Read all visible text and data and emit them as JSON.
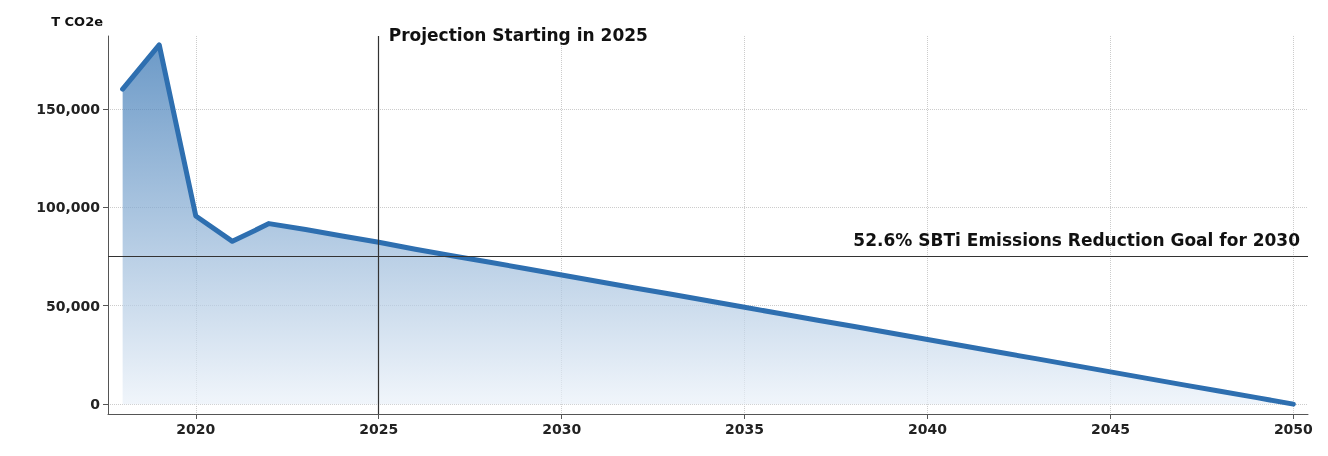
{
  "chart_data": {
    "type": "area",
    "ylabel": "T CO2e",
    "x": [
      2018,
      2019,
      2020,
      2021,
      2022,
      2023,
      2024,
      2025,
      2026,
      2027,
      2028,
      2029,
      2030,
      2031,
      2032,
      2033,
      2034,
      2035,
      2036,
      2037,
      2038,
      2039,
      2040,
      2041,
      2042,
      2043,
      2044,
      2045,
      2046,
      2047,
      2048,
      2049,
      2050
    ],
    "series": [
      {
        "color": "#2e6fb0",
        "values": [
          160000,
          182500,
          95600,
          82700,
          91700,
          88700,
          85400,
          82200,
          78700,
          75400,
          72200,
          68900,
          65600,
          62300,
          59000,
          55800,
          52500,
          49200,
          45900,
          42600,
          39400,
          36100,
          32800,
          29500,
          26200,
          23000,
          19700,
          16400,
          13100,
          9800,
          6600,
          3300,
          0
        ]
      }
    ],
    "xlim": [
      2017.6,
      2050.4
    ],
    "xticks": [
      {
        "value": 2020,
        "label": "2020"
      },
      {
        "value": 2025,
        "label": "2025"
      },
      {
        "value": 2030,
        "label": "2030"
      },
      {
        "value": 2035,
        "label": "2035"
      },
      {
        "value": 2040,
        "label": "2040"
      },
      {
        "value": 2045,
        "label": "2045"
      },
      {
        "value": 2050,
        "label": "2050"
      }
    ],
    "ylim": [
      -5000,
      187000
    ],
    "yticks": [
      0,
      {
        "value": 50000,
        "label": "50,000"
      },
      {
        "value": 100000,
        "label": "100,000"
      },
      {
        "value": 150000,
        "label": "150,000"
      }
    ],
    "ref_lines": [
      {
        "axis": "x",
        "value": 2025,
        "label": "Projection Starting in 2025",
        "color": "#333333"
      },
      {
        "axis": "y",
        "value": 75000,
        "label": "52.6% SBTi Emissions Reduction Goal for 2030",
        "color": "#333333"
      }
    ],
    "grid": true,
    "line_style": "solid"
  }
}
